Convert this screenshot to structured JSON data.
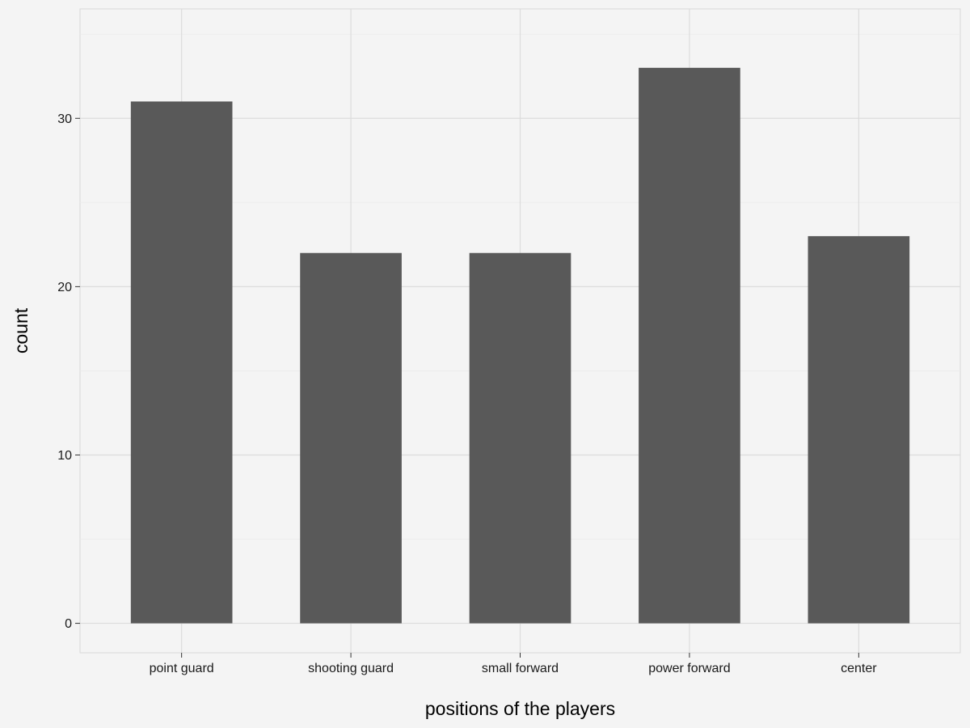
{
  "chart_data": {
    "type": "bar",
    "title": "",
    "xlabel": "positions of the players",
    "ylabel": "count",
    "categories": [
      "point guard",
      "shooting guard",
      "small forward",
      "power forward",
      "center"
    ],
    "values": [
      31,
      22,
      22,
      33,
      23
    ],
    "ylim": [
      -1.75,
      36.5
    ],
    "yticks": [
      0,
      10,
      20,
      30
    ],
    "grid": true,
    "legend": "none",
    "colors": {
      "background": "#f4f4f4",
      "panel_border": "#d9d9d9",
      "grid_major": "#dcdcdc",
      "grid_minor": "#ebebeb",
      "bar": "#595959",
      "text": "#1a1a1a"
    }
  }
}
